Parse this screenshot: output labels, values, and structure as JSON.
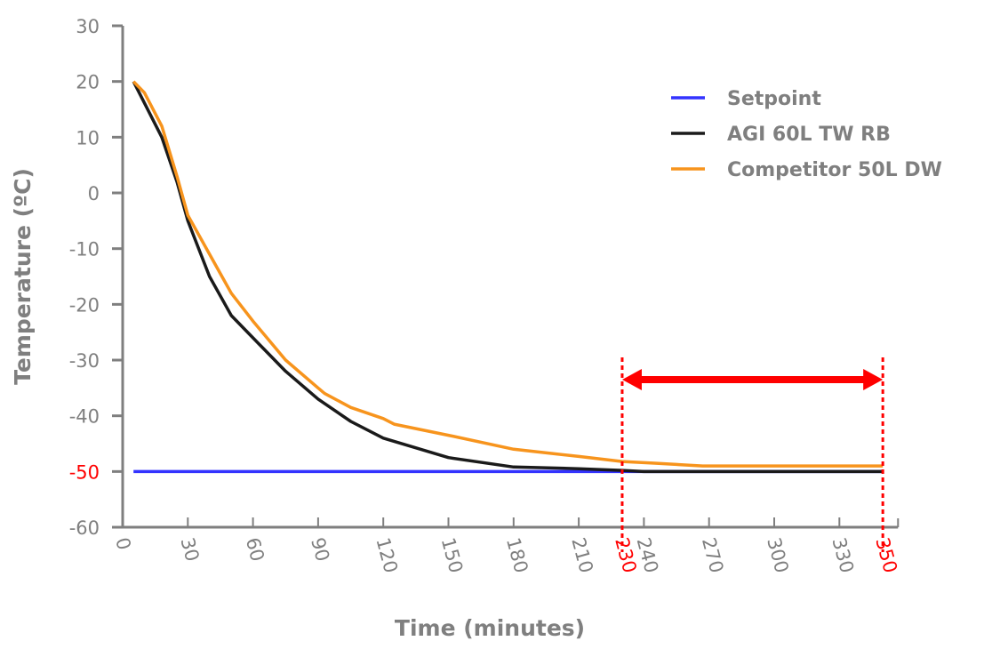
{
  "chart_data": {
    "type": "line",
    "title": "",
    "xlabel": "Time (minutes)",
    "ylabel": "Temperature (ºC)",
    "xlim": [
      0,
      357
    ],
    "ylim": [
      -60,
      30
    ],
    "xticks": [
      0,
      30,
      60,
      90,
      120,
      150,
      180,
      210,
      240,
      270,
      300,
      330
    ],
    "yticks": [
      30,
      20,
      10,
      0,
      -10,
      -20,
      -30,
      -40,
      -50,
      -60
    ],
    "highlighted_ytick": -50,
    "highlighted_xticks": [
      230,
      350
    ],
    "grid": false,
    "legend_position": "top-right",
    "series": [
      {
        "name": "Setpoint",
        "color": "#3333ff",
        "x": [
          5,
          350
        ],
        "y": [
          -50,
          -50
        ]
      },
      {
        "name": "AGI 60L TW RB",
        "color": "#1a1a1a",
        "x": [
          5,
          18,
          25,
          30,
          40,
          50,
          60,
          65,
          75,
          90,
          105,
          120,
          150,
          180,
          210,
          230,
          240,
          350
        ],
        "y": [
          20,
          10,
          2,
          -5,
          -15,
          -22,
          -26,
          -28,
          -32,
          -37,
          -41,
          -44,
          -47.5,
          -49.2,
          -49.5,
          -49.8,
          -50,
          -50
        ]
      },
      {
        "name": "Competitor 50L DW",
        "color": "#f7941d",
        "x": [
          5,
          10,
          18,
          25,
          30,
          40,
          50,
          60,
          75,
          90,
          93,
          105,
          120,
          125,
          150,
          180,
          210,
          230,
          245,
          267,
          350
        ],
        "y": [
          20,
          18,
          12,
          3,
          -4,
          -11,
          -18,
          -23,
          -30,
          -35,
          -36,
          -38.5,
          -40.5,
          -41.5,
          -43.5,
          -46,
          -47.3,
          -48.2,
          -48.5,
          -49,
          -49
        ]
      }
    ],
    "annotations": {
      "range_arrow": {
        "from": 230,
        "to": 350,
        "y": -33.5,
        "color": "#ff0000"
      },
      "dashed_lines_x": [
        230,
        350
      ]
    }
  }
}
